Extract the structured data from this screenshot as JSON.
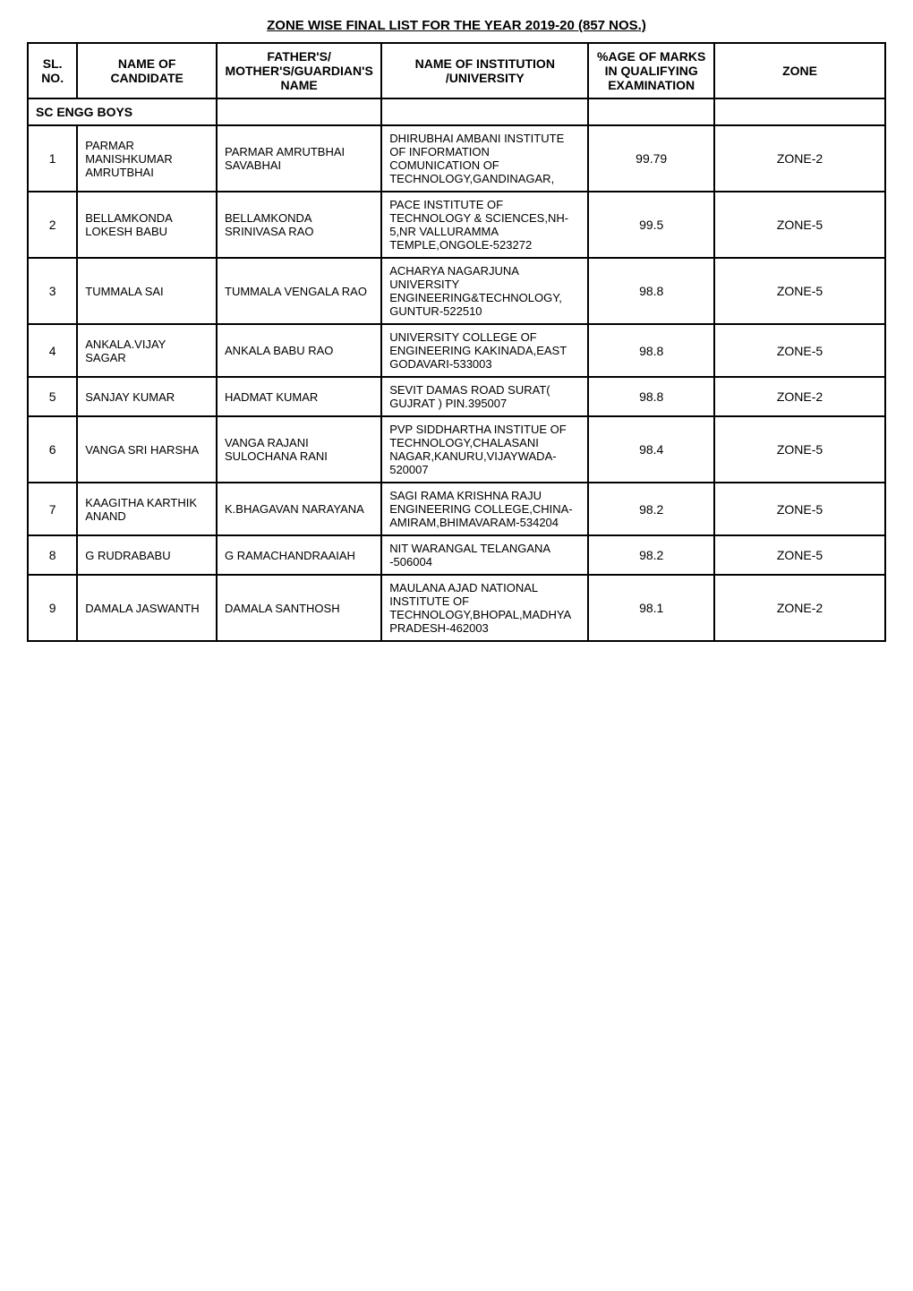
{
  "title": "ZONE WISE FINAL LIST  FOR THE YEAR 2019-20 (857 NOS.)",
  "headers": {
    "sl": "SL. NO.",
    "name": "NAME OF CANDIDATE",
    "father": "FATHER'S/ MOTHER'S/GUARDIAN'S NAME",
    "institution": "NAME OF INSTITUTION /UNIVERSITY",
    "age": "%AGE OF MARKS IN QUALIFYING EXAMINATION",
    "zone": "ZONE"
  },
  "category": "SC ENGG BOYS",
  "rows": [
    {
      "sl": "1",
      "name": "PARMAR MANISHKUMAR AMRUTBHAI",
      "father": "PARMAR AMRUTBHAI SAVABHAI",
      "institution": "DHIRUBHAI AMBANI INSTITUTE OF INFORMATION COMUNICATION OF TECHNOLOGY,GANDINAGAR,",
      "age": "99.79",
      "zone": "ZONE-2"
    },
    {
      "sl": "2",
      "name": "BELLAMKONDA LOKESH BABU",
      "father": "BELLAMKONDA SRINIVASA RAO",
      "institution": "PACE INSTITUTE OF TECHNOLOGY & SCIENCES,NH-5,NR VALLURAMMA TEMPLE,ONGOLE-523272",
      "age": "99.5",
      "zone": "ZONE-5"
    },
    {
      "sl": "3",
      "name": "TUMMALA SAI",
      "father": "TUMMALA VENGALA RAO",
      "institution": "ACHARYA NAGARJUNA UNIVERSITY ENGINEERING&TECHNOLOGY,  GUNTUR-522510",
      "age": "98.8",
      "zone": "ZONE-5"
    },
    {
      "sl": "4",
      "name": "ANKALA.VIJAY SAGAR",
      "father": "ANKALA BABU RAO",
      "institution": "UNIVERSITY COLLEGE OF ENGINEERING KAKINADA,EAST GODAVARI-533003",
      "age": "98.8",
      "zone": "ZONE-5"
    },
    {
      "sl": "5",
      "name": "SANJAY KUMAR",
      "father": "HADMAT KUMAR",
      "institution": "SEVIT DAMAS ROAD SURAT( GUJRAT ) PIN.395007",
      "age": "98.8",
      "zone": "ZONE-2"
    },
    {
      "sl": "6",
      "name": "VANGA SRI HARSHA",
      "father": "VANGA RAJANI SULOCHANA RANI",
      "institution": "PVP SIDDHARTHA INSTITUE OF TECHNOLOGY,CHALASANI NAGAR,KANURU,VIJAYWADA-520007",
      "age": "98.4",
      "zone": "ZONE-5"
    },
    {
      "sl": "7",
      "name": "KAAGITHA KARTHIK ANAND",
      "father": "K.BHAGAVAN NARAYANA",
      "institution": "SAGI RAMA KRISHNA RAJU ENGINEERING COLLEGE,CHINA-AMIRAM,BHIMAVARAM-534204",
      "age": "98.2",
      "zone": "ZONE-5"
    },
    {
      "sl": "8",
      "name": "G RUDRABABU",
      "father": "G RAMACHANDRAAIAH",
      "institution": "NIT WARANGAL TELANGANA -506004",
      "age": "98.2",
      "zone": "ZONE-5"
    },
    {
      "sl": "9",
      "name": "DAMALA JASWANTH",
      "father": "DAMALA SANTHOSH",
      "institution": "MAULANA AJAD NATIONAL INSTITUTE OF TECHNOLOGY,BHOPAL,MADHYA PRADESH-462003",
      "age": "98.1",
      "zone": "ZONE-2"
    }
  ],
  "styling": {
    "title_fontsize": 15,
    "header_fontsize": 14,
    "cell_fontsize": 13,
    "border_color": "#000000",
    "border_width": 2,
    "background_color": "#ffffff",
    "font_family": "Arial"
  }
}
